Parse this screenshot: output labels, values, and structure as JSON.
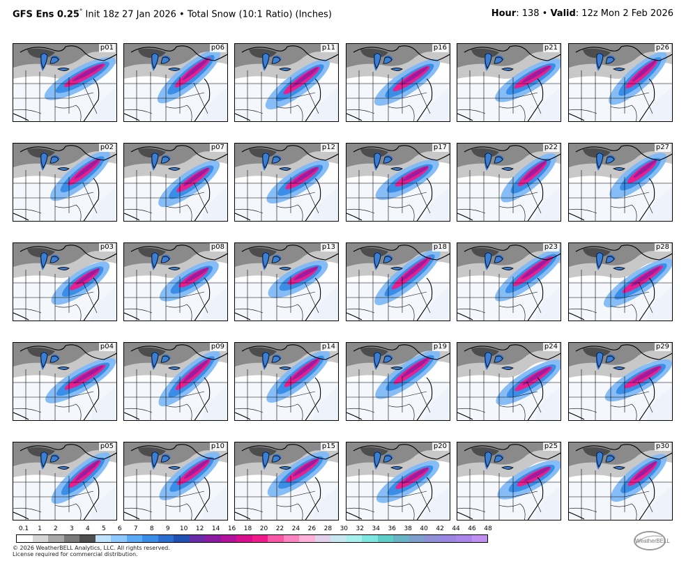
{
  "header": {
    "model": "GFS Ens 0.25",
    "deg": "°",
    "init": " Init 18z 27 Jan 2026",
    "sep": " • ",
    "product": "Total Snow (10:1 Ratio) (Inches)",
    "hour_label": "Hour",
    "hour_value": ": 138 • ",
    "valid_label": "Valid",
    "valid_value": ": 12z Mon 2 Feb 2026"
  },
  "panels": [
    "p01",
    "p06",
    "p11",
    "p16",
    "p21",
    "p26",
    "p02",
    "p07",
    "p12",
    "p17",
    "p22",
    "p27",
    "p03",
    "p08",
    "p13",
    "p18",
    "p23",
    "p28",
    "p04",
    "p09",
    "p14",
    "p19",
    "p24",
    "p29",
    "p05",
    "p10",
    "p15",
    "p20",
    "p25",
    "p30"
  ],
  "colorbar": {
    "ticks": [
      "0.1",
      "1",
      "2",
      "3",
      "4",
      "5",
      "6",
      "7",
      "8",
      "9",
      "10",
      "12",
      "14",
      "16",
      "18",
      "20",
      "22",
      "24",
      "26",
      "28",
      "30",
      "32",
      "34",
      "36",
      "38",
      "40",
      "42",
      "44",
      "46",
      "48"
    ],
    "colors": [
      "#ffffff",
      "#d6d6d6",
      "#a8a8a8",
      "#7a7a7a",
      "#4e4e4e",
      "#bfe3ff",
      "#8fc8ff",
      "#5aaaf5",
      "#3a8ee8",
      "#2a6fd0",
      "#2050b0",
      "#6a2ba8",
      "#8a1aa0",
      "#b2129a",
      "#d80f8c",
      "#f01a8a",
      "#f857a8",
      "#fb84c2",
      "#fdb0d8",
      "#e0d0ea",
      "#c8e8f0",
      "#a8f0f0",
      "#7ee6e0",
      "#5ecfc8",
      "#6ab4c8",
      "#7fa0cc",
      "#8f90d8",
      "#9a86e0",
      "#aa86ea",
      "#c090f0"
    ]
  },
  "copyright": "© 2026 WeatherBELL Analytics, LLC. All rights reserved.",
  "license": "License required for commercial distribution.",
  "logo_text": "WeatherBELL"
}
